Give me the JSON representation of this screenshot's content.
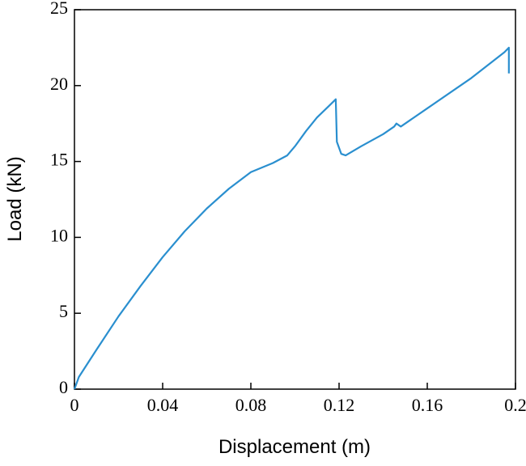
{
  "chart_data": {
    "type": "line",
    "x_label": "Displacement (m)",
    "y_label": "Load (kN)",
    "xlim": [
      0,
      0.2
    ],
    "ylim": [
      0,
      25
    ],
    "xticks": [
      0,
      0.04,
      0.08,
      0.12,
      0.16,
      0.2
    ],
    "yticks": [
      0,
      5,
      10,
      15,
      20,
      25
    ],
    "x": [
      0,
      0.002,
      0.01,
      0.02,
      0.03,
      0.04,
      0.05,
      0.06,
      0.07,
      0.08,
      0.09,
      0.0965,
      0.1,
      0.105,
      0.11,
      0.115,
      0.1185,
      0.119,
      0.121,
      0.123,
      0.13,
      0.14,
      0.145,
      0.146,
      0.148,
      0.16,
      0.18,
      0.195,
      0.197,
      0.197
    ],
    "series": [
      {
        "color": "#2a8fcf",
        "values": [
          0,
          0.8,
          2.6,
          4.8,
          6.8,
          8.7,
          10.4,
          11.9,
          13.2,
          14.3,
          14.9,
          15.4,
          16.0,
          17.0,
          17.9,
          18.6,
          19.1,
          16.3,
          15.5,
          15.4,
          16.0,
          16.8,
          17.3,
          17.5,
          17.3,
          18.5,
          20.5,
          22.2,
          22.5,
          20.8
        ]
      }
    ]
  }
}
